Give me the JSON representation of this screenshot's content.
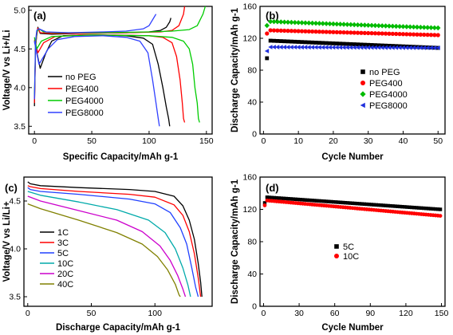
{
  "chart_data": [
    {
      "type": "line",
      "tag": "(a)",
      "xlabel": "Specific Capacity/mAh g-1",
      "ylabel": "Voltage/V vs Li+/Li",
      "xlim": [
        -5,
        155
      ],
      "ylim": [
        3.4,
        5.05
      ],
      "xticks": [
        0,
        50,
        100,
        150
      ],
      "yticks": [
        3.5,
        4.0,
        4.5,
        5.0
      ],
      "legend_position": "left-center",
      "series": [
        {
          "name": "no PEG",
          "color": "#000000",
          "charge": [
            [
              0,
              3.76
            ],
            [
              1,
              4.55
            ],
            [
              2,
              4.68
            ],
            [
              3,
              4.78
            ],
            [
              5,
              4.7
            ],
            [
              15,
              4.69
            ],
            [
              40,
              4.7
            ],
            [
              80,
              4.71
            ],
            [
              100,
              4.72
            ],
            [
              110,
              4.74
            ],
            [
              115,
              4.78
            ],
            [
              118,
              4.85
            ],
            [
              119,
              4.9
            ]
          ],
          "discharge": [
            [
              0,
              4.6
            ],
            [
              5,
              4.25
            ],
            [
              10,
              4.45
            ],
            [
              15,
              4.6
            ],
            [
              25,
              4.67
            ],
            [
              40,
              4.68
            ],
            [
              60,
              4.68
            ],
            [
              80,
              4.67
            ],
            [
              95,
              4.64
            ],
            [
              103,
              4.56
            ],
            [
              108,
              4.3
            ],
            [
              112,
              4.0
            ],
            [
              115,
              3.75
            ],
            [
              117,
              3.6
            ],
            [
              118,
              3.5
            ]
          ]
        },
        {
          "name": "PEG400",
          "color": "#ff0000",
          "charge": [
            [
              0,
              3.8
            ],
            [
              1,
              4.5
            ],
            [
              2,
              4.7
            ],
            [
              3,
              4.77
            ],
            [
              5,
              4.71
            ],
            [
              15,
              4.7
            ],
            [
              40,
              4.7
            ],
            [
              80,
              4.71
            ],
            [
              110,
              4.72
            ],
            [
              120,
              4.74
            ],
            [
              126,
              4.8
            ],
            [
              130,
              4.95
            ],
            [
              131,
              5.05
            ]
          ],
          "discharge": [
            [
              0,
              4.62
            ],
            [
              3,
              4.45
            ],
            [
              8,
              4.58
            ],
            [
              18,
              4.66
            ],
            [
              40,
              4.68
            ],
            [
              70,
              4.68
            ],
            [
              100,
              4.67
            ],
            [
              112,
              4.65
            ],
            [
              120,
              4.58
            ],
            [
              124,
              4.4
            ],
            [
              127,
              4.1
            ],
            [
              129,
              3.8
            ],
            [
              130,
              3.6
            ],
            [
              131,
              3.55
            ]
          ]
        },
        {
          "name": "PEG4000",
          "color": "#00cc00",
          "charge": [
            [
              0,
              3.9
            ],
            [
              1,
              4.55
            ],
            [
              2,
              4.72
            ],
            [
              4,
              4.76
            ],
            [
              8,
              4.72
            ],
            [
              20,
              4.71
            ],
            [
              60,
              4.71
            ],
            [
              100,
              4.72
            ],
            [
              120,
              4.73
            ],
            [
              135,
              4.75
            ],
            [
              142,
              4.8
            ],
            [
              147,
              4.95
            ],
            [
              149,
              5.05
            ]
          ],
          "discharge": [
            [
              0,
              4.65
            ],
            [
              2,
              4.5
            ],
            [
              6,
              4.6
            ],
            [
              15,
              4.66
            ],
            [
              50,
              4.68
            ],
            [
              100,
              4.67
            ],
            [
              120,
              4.65
            ],
            [
              130,
              4.6
            ],
            [
              135,
              4.5
            ],
            [
              138,
              4.3
            ],
            [
              140,
              4.0
            ],
            [
              142,
              3.8
            ],
            [
              143,
              3.6
            ],
            [
              144,
              3.55
            ]
          ]
        },
        {
          "name": "PEG8000",
          "color": "#3040ff",
          "charge": [
            [
              0,
              3.85
            ],
            [
              1,
              4.6
            ],
            [
              2,
              4.74
            ],
            [
              4,
              4.76
            ],
            [
              10,
              4.72
            ],
            [
              30,
              4.71
            ],
            [
              60,
              4.72
            ],
            [
              80,
              4.73
            ],
            [
              95,
              4.76
            ],
            [
              100,
              4.8
            ],
            [
              104,
              4.9
            ],
            [
              106,
              4.95
            ]
          ],
          "discharge": [
            [
              0,
              4.6
            ],
            [
              4,
              4.3
            ],
            [
              12,
              4.5
            ],
            [
              20,
              4.62
            ],
            [
              35,
              4.66
            ],
            [
              60,
              4.67
            ],
            [
              80,
              4.65
            ],
            [
              92,
              4.6
            ],
            [
              99,
              4.45
            ],
            [
              103,
              4.1
            ],
            [
              106,
              3.8
            ],
            [
              108,
              3.6
            ],
            [
              109,
              3.5
            ]
          ]
        }
      ]
    },
    {
      "type": "scatter",
      "tag": "(b)",
      "xlabel": "Cycle Number",
      "ylabel": "Discharge Capacity/mAh g-1",
      "xlim": [
        -1,
        52
      ],
      "ylim": [
        0,
        160
      ],
      "xticks": [
        0,
        10,
        20,
        30,
        40,
        50
      ],
      "yticks": [
        0,
        40,
        80,
        120,
        160
      ],
      "legend_position": "right-center",
      "n_points": 50,
      "series": [
        {
          "name": "no PEG",
          "color": "#000000",
          "marker": "square",
          "first": 95,
          "start": 117,
          "end": 108
        },
        {
          "name": "PEG400",
          "color": "#ff0000",
          "marker": "circle",
          "first": 126,
          "start": 130,
          "end": 124
        },
        {
          "name": "PEG4000",
          "color": "#00bb00",
          "marker": "diamond",
          "first": 136,
          "start": 141,
          "end": 133
        },
        {
          "name": "PEG8000",
          "color": "#2030dd",
          "marker": "triangle-left",
          "first": 104,
          "start": 109,
          "end": 108
        }
      ]
    },
    {
      "type": "line",
      "tag": "(c)",
      "xlabel": "Discharge Capacity/mAh g-1",
      "ylabel": "Voltage/V vs Li/Li+",
      "xlim": [
        -3,
        145
      ],
      "ylim": [
        3.4,
        4.75
      ],
      "xticks": [
        0,
        50,
        100
      ],
      "yticks": [
        3.5,
        4.0,
        4.5
      ],
      "legend_position": "left-center",
      "series": [
        {
          "name": "1C",
          "color": "#000000",
          "points": [
            [
              0,
              4.7
            ],
            [
              2,
              4.68
            ],
            [
              10,
              4.66
            ],
            [
              40,
              4.64
            ],
            [
              80,
              4.62
            ],
            [
              100,
              4.6
            ],
            [
              115,
              4.55
            ],
            [
              122,
              4.45
            ],
            [
              127,
              4.3
            ],
            [
              131,
              4.1
            ],
            [
              134,
              3.85
            ],
            [
              136,
              3.65
            ],
            [
              137,
              3.5
            ]
          ]
        },
        {
          "name": "3C",
          "color": "#ff0000",
          "points": [
            [
              0,
              4.66
            ],
            [
              2,
              4.65
            ],
            [
              10,
              4.63
            ],
            [
              40,
              4.6
            ],
            [
              80,
              4.57
            ],
            [
              100,
              4.54
            ],
            [
              115,
              4.46
            ],
            [
              122,
              4.35
            ],
            [
              127,
              4.18
            ],
            [
              131,
              3.95
            ],
            [
              134,
              3.7
            ],
            [
              136,
              3.5
            ]
          ]
        },
        {
          "name": "5C",
          "color": "#2040ff",
          "points": [
            [
              0,
              4.64
            ],
            [
              2,
              4.62
            ],
            [
              10,
              4.6
            ],
            [
              40,
              4.57
            ],
            [
              80,
              4.52
            ],
            [
              100,
              4.47
            ],
            [
              112,
              4.38
            ],
            [
              120,
              4.22
            ],
            [
              125,
              4.05
            ],
            [
              129,
              3.8
            ],
            [
              132,
              3.6
            ],
            [
              134,
              3.5
            ]
          ]
        },
        {
          "name": "10C",
          "color": "#00aaaa",
          "points": [
            [
              0,
              4.6
            ],
            [
              10,
              4.56
            ],
            [
              40,
              4.49
            ],
            [
              70,
              4.41
            ],
            [
              95,
              4.3
            ],
            [
              108,
              4.17
            ],
            [
              116,
              4.0
            ],
            [
              122,
              3.8
            ],
            [
              126,
              3.62
            ],
            [
              128,
              3.5
            ]
          ]
        },
        {
          "name": "20C",
          "color": "#cc00cc",
          "points": [
            [
              0,
              4.55
            ],
            [
              10,
              4.5
            ],
            [
              40,
              4.4
            ],
            [
              70,
              4.3
            ],
            [
              90,
              4.18
            ],
            [
              104,
              4.03
            ],
            [
              112,
              3.88
            ],
            [
              118,
              3.72
            ],
            [
              122,
              3.58
            ],
            [
              124,
              3.5
            ]
          ]
        },
        {
          "name": "40C",
          "color": "#808000",
          "points": [
            [
              0,
              4.47
            ],
            [
              10,
              4.42
            ],
            [
              40,
              4.3
            ],
            [
              70,
              4.17
            ],
            [
              90,
              4.05
            ],
            [
              102,
              3.92
            ],
            [
              110,
              3.78
            ],
            [
              116,
              3.63
            ],
            [
              119,
              3.52
            ],
            [
              120,
              3.5
            ]
          ]
        }
      ]
    },
    {
      "type": "scatter",
      "tag": "(d)",
      "xlabel": "Cycle Number",
      "ylabel": "Discharge Capacity/mAh g-1",
      "xlim": [
        -3,
        153
      ],
      "ylim": [
        0,
        160
      ],
      "xticks": [
        0,
        30,
        60,
        90,
        120,
        150
      ],
      "yticks": [
        0,
        40,
        80,
        120,
        160
      ],
      "legend_position": "center",
      "n_points": 75,
      "x_step": 2,
      "series": [
        {
          "name": "5C",
          "color": "#000000",
          "marker": "square",
          "first": 128,
          "start": 135,
          "end": 120
        },
        {
          "name": "10C",
          "color": "#ff0000",
          "marker": "circle",
          "first": 125,
          "start": 131,
          "end": 112
        }
      ]
    }
  ]
}
